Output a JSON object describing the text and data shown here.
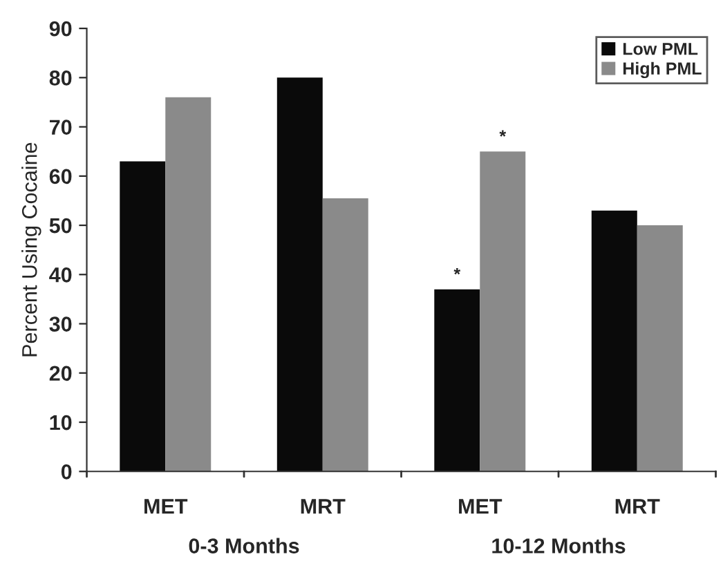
{
  "chart_data": {
    "type": "bar",
    "ylabel": "Percent Using Cocaine",
    "categories": [
      "MET",
      "MRT",
      "MET",
      "MRT"
    ],
    "series": [
      {
        "name": "Low PML",
        "color": "#0a0a0a",
        "values": [
          63,
          80,
          37,
          53
        ],
        "value_labels": [
          null,
          null,
          "*",
          null
        ]
      },
      {
        "name": "High PML",
        "color": "#8a8a8a",
        "values": [
          76,
          55.5,
          65,
          50
        ],
        "value_labels": [
          null,
          null,
          "*",
          null
        ]
      }
    ],
    "annotations": [
      "0-3 Months",
      "10-12 Months"
    ],
    "ylim": [
      0,
      90
    ],
    "yticks": [
      0,
      10,
      20,
      30,
      40,
      50,
      60,
      70,
      80,
      90
    ],
    "grid": false,
    "legend": "top right"
  }
}
